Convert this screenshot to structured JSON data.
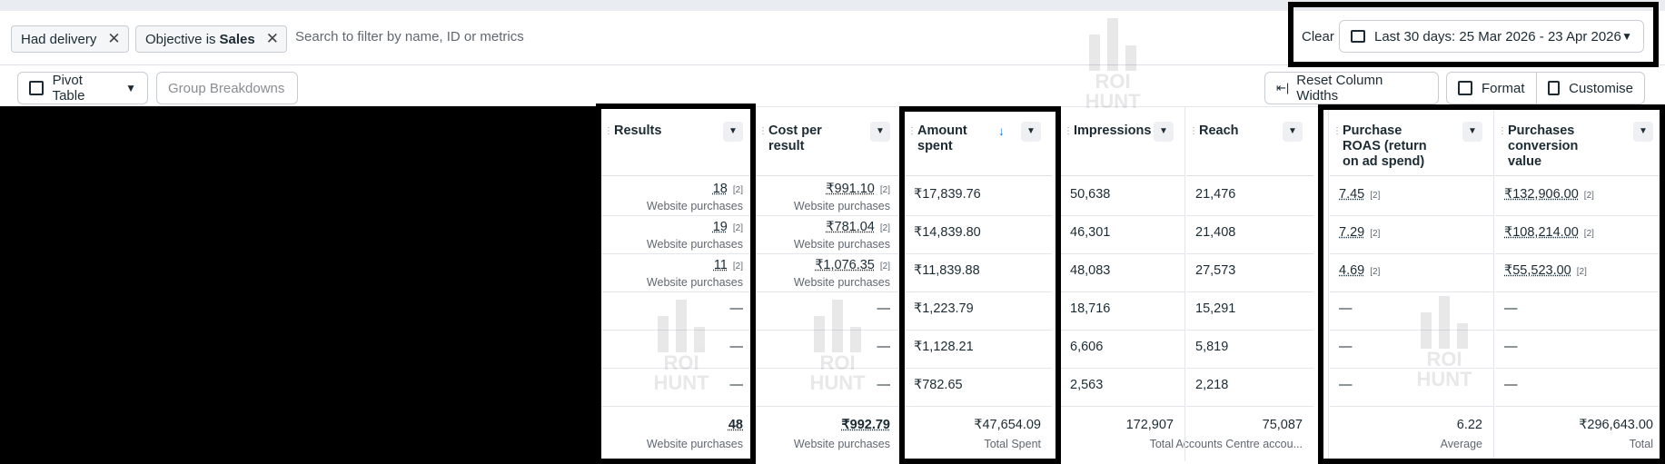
{
  "filters": {
    "chips": [
      {
        "label": "Had delivery",
        "bold": ""
      },
      {
        "label": "Objective is",
        "bold": "Sales"
      }
    ],
    "search_placeholder": "Search to filter by name, ID or metrics",
    "clear_label": "Clear",
    "date_range": "Last 30 days: 25 Mar 2026 - 23 Apr 2026"
  },
  "toolbar": {
    "pivot_label": "Pivot Table",
    "group_label": "Group Breakdowns",
    "reset_label": "Reset Column Widths",
    "format_label": "Format",
    "customise_label": "Customise"
  },
  "watermark": {
    "line1": "ROI",
    "line2": "HUNT"
  },
  "columns": {
    "results": {
      "header": "Results"
    },
    "cost": {
      "header": "Cost per result"
    },
    "amount": {
      "header": "Amount spent",
      "sort_icon": "↓"
    },
    "impressions": {
      "header": "Impressions"
    },
    "reach": {
      "header": "Reach"
    },
    "roas": {
      "header": "Purchase ROAS (return on ad spend)"
    },
    "pcv": {
      "header": "Purchases conversion value"
    }
  },
  "rows": [
    {
      "results": "18",
      "results_sup": "[2]",
      "results_sub": "Website purchases",
      "cost": "₹991.10",
      "cost_sup": "[2]",
      "cost_sub": "Website purchases",
      "amount": "₹17,839.76",
      "impressions": "50,638",
      "reach": "21,476",
      "roas": "7.45",
      "roas_sup": "[2]",
      "pcv": "₹132,906.00",
      "pcv_sup": "[2]"
    },
    {
      "results": "19",
      "results_sup": "[2]",
      "results_sub": "Website purchases",
      "cost": "₹781.04",
      "cost_sup": "[2]",
      "cost_sub": "Website purchases",
      "amount": "₹14,839.80",
      "impressions": "46,301",
      "reach": "21,408",
      "roas": "7.29",
      "roas_sup": "[2]",
      "pcv": "₹108,214.00",
      "pcv_sup": "[2]"
    },
    {
      "results": "11",
      "results_sup": "[2]",
      "results_sub": "Website purchases",
      "cost": "₹1,076.35",
      "cost_sup": "[2]",
      "cost_sub": "Website purchases",
      "amount": "₹11,839.88",
      "impressions": "48,083",
      "reach": "27,573",
      "roas": "4.69",
      "roas_sup": "[2]",
      "pcv": "₹55,523.00",
      "pcv_sup": "[2]"
    },
    {
      "results": "—",
      "cost": "—",
      "amount": "₹1,223.79",
      "impressions": "18,716",
      "reach": "15,291",
      "roas": "—",
      "pcv": "—"
    },
    {
      "results": "—",
      "cost": "—",
      "amount": "₹1,128.21",
      "impressions": "6,606",
      "reach": "5,819",
      "roas": "—",
      "pcv": "—"
    },
    {
      "results": "—",
      "cost": "—",
      "amount": "₹782.65",
      "impressions": "2,563",
      "reach": "2,218",
      "roas": "—",
      "pcv": "—"
    }
  ],
  "totals": {
    "results": "48",
    "results_sub": "Website purchases",
    "cost": "₹992.79",
    "cost_sub": "Website purchases",
    "amount": "₹47,654.09",
    "amount_sub": "Total Spent",
    "impressions": "172,907",
    "impressions_sub": "Total",
    "reach": "75,087",
    "reach_sub": "Accounts Centre accou...",
    "roas": "6.22",
    "roas_sub": "Average",
    "pcv": "₹296,643.00",
    "pcv_sub": "Total"
  }
}
